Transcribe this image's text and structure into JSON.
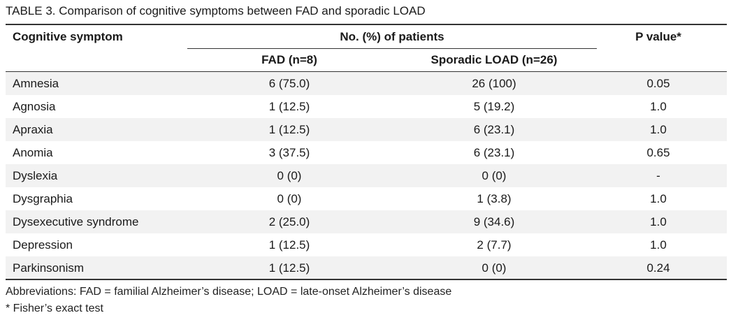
{
  "caption": {
    "label": "TABLE 3.",
    "text": "Comparison of cognitive symptoms between FAD and sporadic LOAD"
  },
  "headers": {
    "symptom": "Cognitive symptom",
    "group": "No. (%) of patients",
    "fad": "FAD (n=8)",
    "load": "Sporadic LOAD (n=26)",
    "p": "P value*"
  },
  "rows": [
    {
      "symptom": "Amnesia",
      "fad": "6 (75.0)",
      "load": "26 (100)",
      "p": "0.05"
    },
    {
      "symptom": "Agnosia",
      "fad": "1 (12.5)",
      "load": "5 (19.2)",
      "p": "1.0"
    },
    {
      "symptom": "Apraxia",
      "fad": "1 (12.5)",
      "load": "6 (23.1)",
      "p": "1.0"
    },
    {
      "symptom": "Anomia",
      "fad": "3 (37.5)",
      "load": "6 (23.1)",
      "p": "0.65"
    },
    {
      "symptom": "Dyslexia",
      "fad": "0 (0)",
      "load": "0 (0)",
      "p": "-"
    },
    {
      "symptom": "Dysgraphia",
      "fad": "0 (0)",
      "load": "1 (3.8)",
      "p": "1.0"
    },
    {
      "symptom": "Dysexecutive syndrome",
      "fad": "2 (25.0)",
      "load": "9 (34.6)",
      "p": "1.0"
    },
    {
      "symptom": "Depression",
      "fad": "1 (12.5)",
      "load": "2 (7.7)",
      "p": "1.0"
    },
    {
      "symptom": "Parkinsonism",
      "fad": "1 (12.5)",
      "load": "0 (0)",
      "p": "0.24"
    }
  ],
  "footnotes": {
    "abbreviations": "Abbreviations: FAD = familial Alzheimer’s disease; LOAD = late-onset Alzheimer’s disease",
    "star": "*   Fisher’s exact test"
  }
}
